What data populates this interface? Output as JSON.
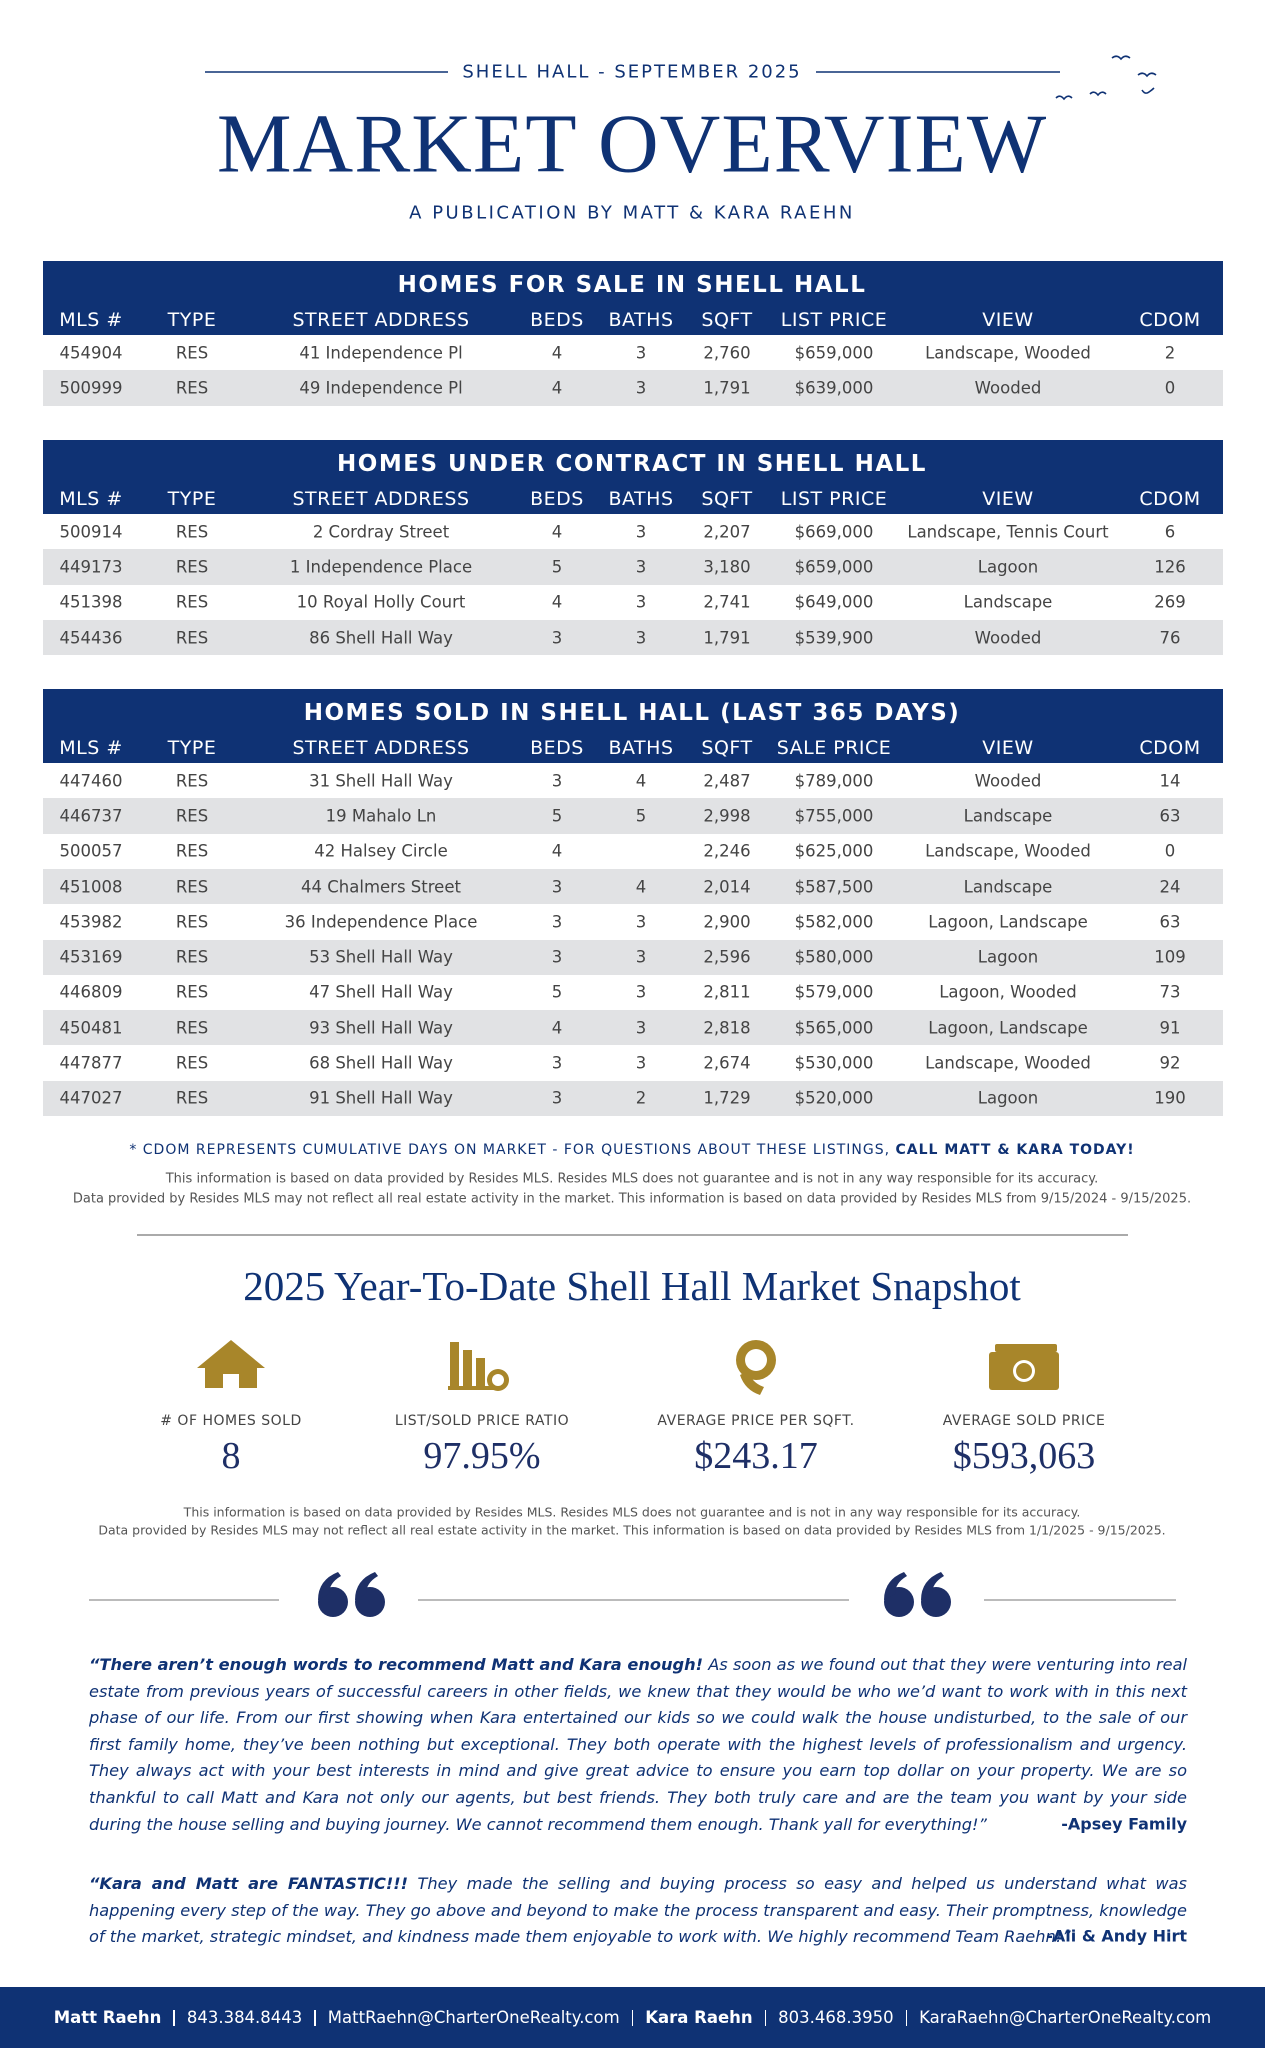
{
  "header": {
    "kicker": "SHELL HALL - SEPTEMBER 2025",
    "title": "MARKET OVERVIEW",
    "subtitle": "A PUBLICATION BY MATT & KARA RAEHN"
  },
  "tables": [
    {
      "title": "HOMES FOR SALE IN SHELL HALL",
      "columns": [
        "MLS #",
        "TYPE",
        "STREET ADDRESS",
        "BEDS",
        "BATHS",
        "SQFT",
        "LIST PRICE",
        "VIEW",
        "CDOM"
      ],
      "rows": [
        [
          "454904",
          "RES",
          "41 Independence Pl",
          "4",
          "3",
          "2,760",
          "$659,000",
          "Landscape, Wooded",
          "2"
        ],
        [
          "500999",
          "RES",
          "49 Independence Pl",
          "4",
          "3",
          "1,791",
          "$639,000",
          "Wooded",
          "0"
        ]
      ]
    },
    {
      "title": "HOMES UNDER CONTRACT IN SHELL HALL",
      "columns": [
        "MLS #",
        "TYPE",
        "STREET ADDRESS",
        "BEDS",
        "BATHS",
        "SQFT",
        "LIST PRICE",
        "VIEW",
        "CDOM"
      ],
      "rows": [
        [
          "500914",
          "RES",
          "2 Cordray Street",
          "4",
          "3",
          "2,207",
          "$669,000",
          "Landscape, Tennis Court",
          "6"
        ],
        [
          "449173",
          "RES",
          "1 Independence Place",
          "5",
          "3",
          "3,180",
          "$659,000",
          "Lagoon",
          "126"
        ],
        [
          "451398",
          "RES",
          "10 Royal Holly Court",
          "4",
          "3",
          "2,741",
          "$649,000",
          "Landscape",
          "269"
        ],
        [
          "454436",
          "RES",
          "86 Shell Hall Way",
          "3",
          "3",
          "1,791",
          "$539,900",
          "Wooded",
          "76"
        ]
      ]
    },
    {
      "title": "HOMES SOLD IN SHELL HALL (LAST 365 DAYS)",
      "columns": [
        "MLS #",
        "TYPE",
        "STREET ADDRESS",
        "BEDS",
        "BATHS",
        "SQFT",
        "SALE PRICE",
        "VIEW",
        "CDOM"
      ],
      "rows": [
        [
          "447460",
          "RES",
          "31 Shell Hall Way",
          "3",
          "4",
          "2,487",
          "$789,000",
          "Wooded",
          "14"
        ],
        [
          "446737",
          "RES",
          "19 Mahalo Ln",
          "5",
          "5",
          "2,998",
          "$755,000",
          "Landscape",
          "63"
        ],
        [
          "500057",
          "RES",
          "42 Halsey Circle",
          "4",
          null,
          "2,246",
          "$625,000",
          "Landscape, Wooded",
          "0"
        ],
        [
          "451008",
          "RES",
          "44 Chalmers Street",
          "3",
          "4",
          "2,014",
          "$587,500",
          "Landscape",
          "24"
        ],
        [
          "453982",
          "RES",
          "36 Independence Place",
          "3",
          "3",
          "2,900",
          "$582,000",
          "Lagoon, Landscape",
          "63"
        ],
        [
          "453169",
          "RES",
          "53 Shell Hall Way",
          "3",
          "3",
          "2,596",
          "$580,000",
          "Lagoon",
          "109"
        ],
        [
          "446809",
          "RES",
          "47 Shell Hall Way",
          "5",
          "3",
          "2,811",
          "$579,000",
          "Lagoon, Wooded",
          "73"
        ],
        [
          "450481",
          "RES",
          "93 Shell Hall Way",
          "4",
          "3",
          "2,818",
          "$565,000",
          "Lagoon, Landscape",
          "91"
        ],
        [
          "447877",
          "RES",
          "68 Shell Hall Way",
          "3",
          "3",
          "2,674",
          "$530,000",
          "Landscape, Wooded",
          "92"
        ],
        [
          "447027",
          "RES",
          "91 Shell Hall Way",
          "3",
          "2",
          "1,729",
          "$520,000",
          "Lagoon",
          "190"
        ]
      ]
    }
  ],
  "notes": {
    "cdom": "* CDOM REPRESENTS CUMULATIVE DAYS ON MARKET - FOR QUESTIONS ABOUT THESE LISTINGS,",
    "cta": "CALL MATT & KARA TODAY!",
    "disclaimer": [
      "This information is based on data provided by Resides MLS. Resides MLS does not guarantee and is not in any way responsible for its accuracy.",
      "Data provided by Resides MLS may not reflect all real estate activity in the market. This information is based on data provided by Resides MLS from 9/15/2024 - 9/15/2025."
    ]
  },
  "snapshot": {
    "title": "2025 Year-To-Date Shell Hall Market Snapshot",
    "stats": [
      {
        "label": "# OF HOMES SOLD",
        "value": "8"
      },
      {
        "label": "LIST/SOLD PRICE RATIO",
        "value": "97.95%"
      },
      {
        "label": "AVERAGE PRICE PER SQFT.",
        "value": "$243.17"
      },
      {
        "label": "AVERAGE SOLD PRICE",
        "value": "$593,063"
      }
    ],
    "disclaimer": [
      "This information is based on data provided by Resides MLS. Resides MLS does not guarantee and is not in any way responsible for its accuracy.",
      "Data provided by Resides MLS may not reflect all real estate activity in the market. This information is based on data provided by Resides MLS from 1/1/2025 - 9/15/2025."
    ]
  },
  "testimonials": [
    {
      "lead": "“There aren’t enough words to recommend Matt and Kara enough!",
      "body": "As soon as we found out that they were venturing into real estate from previous years of successful careers in other fields, we knew that they would be who we’d want to work with in this next phase of our life. From our first showing when Kara entertained our kids so we could walk the house undisturbed, to the sale of our first family home, they’ve been nothing but exceptional. They both operate with the highest levels of professionalism and urgency. They always act with your best interests in mind and give great advice to ensure you earn top dollar on your property. We are so thankful to call Matt and Kara not only our agents, but best friends. They both truly care and are the team you want by your side during the house selling and buying journey. We cannot recommend them enough. Thank yall for everything!”",
      "author": "-Apsey Family"
    },
    {
      "lead": "“Kara and Matt are FANTASTIC!!!",
      "body": "They made the selling and buying process so easy and helped us understand what was happening every step of the way. They go above and beyond to make the process transparent and easy.  Their promptness, knowledge of the market, strategic mindset, and kindness made them enjoyable to work with. We highly recommend Team Raehn!”",
      "author": "-Ali & Andy Hirt"
    }
  ],
  "footer": {
    "contacts": [
      {
        "name": "Matt Raehn",
        "phone": "843.384.8443",
        "email": "MattRaehn@CharterOneRealty.com"
      },
      {
        "name": "Kara Raehn",
        "phone": "803.468.3950",
        "email": "KaraRaehn@CharterOneRealty.com"
      }
    ]
  }
}
